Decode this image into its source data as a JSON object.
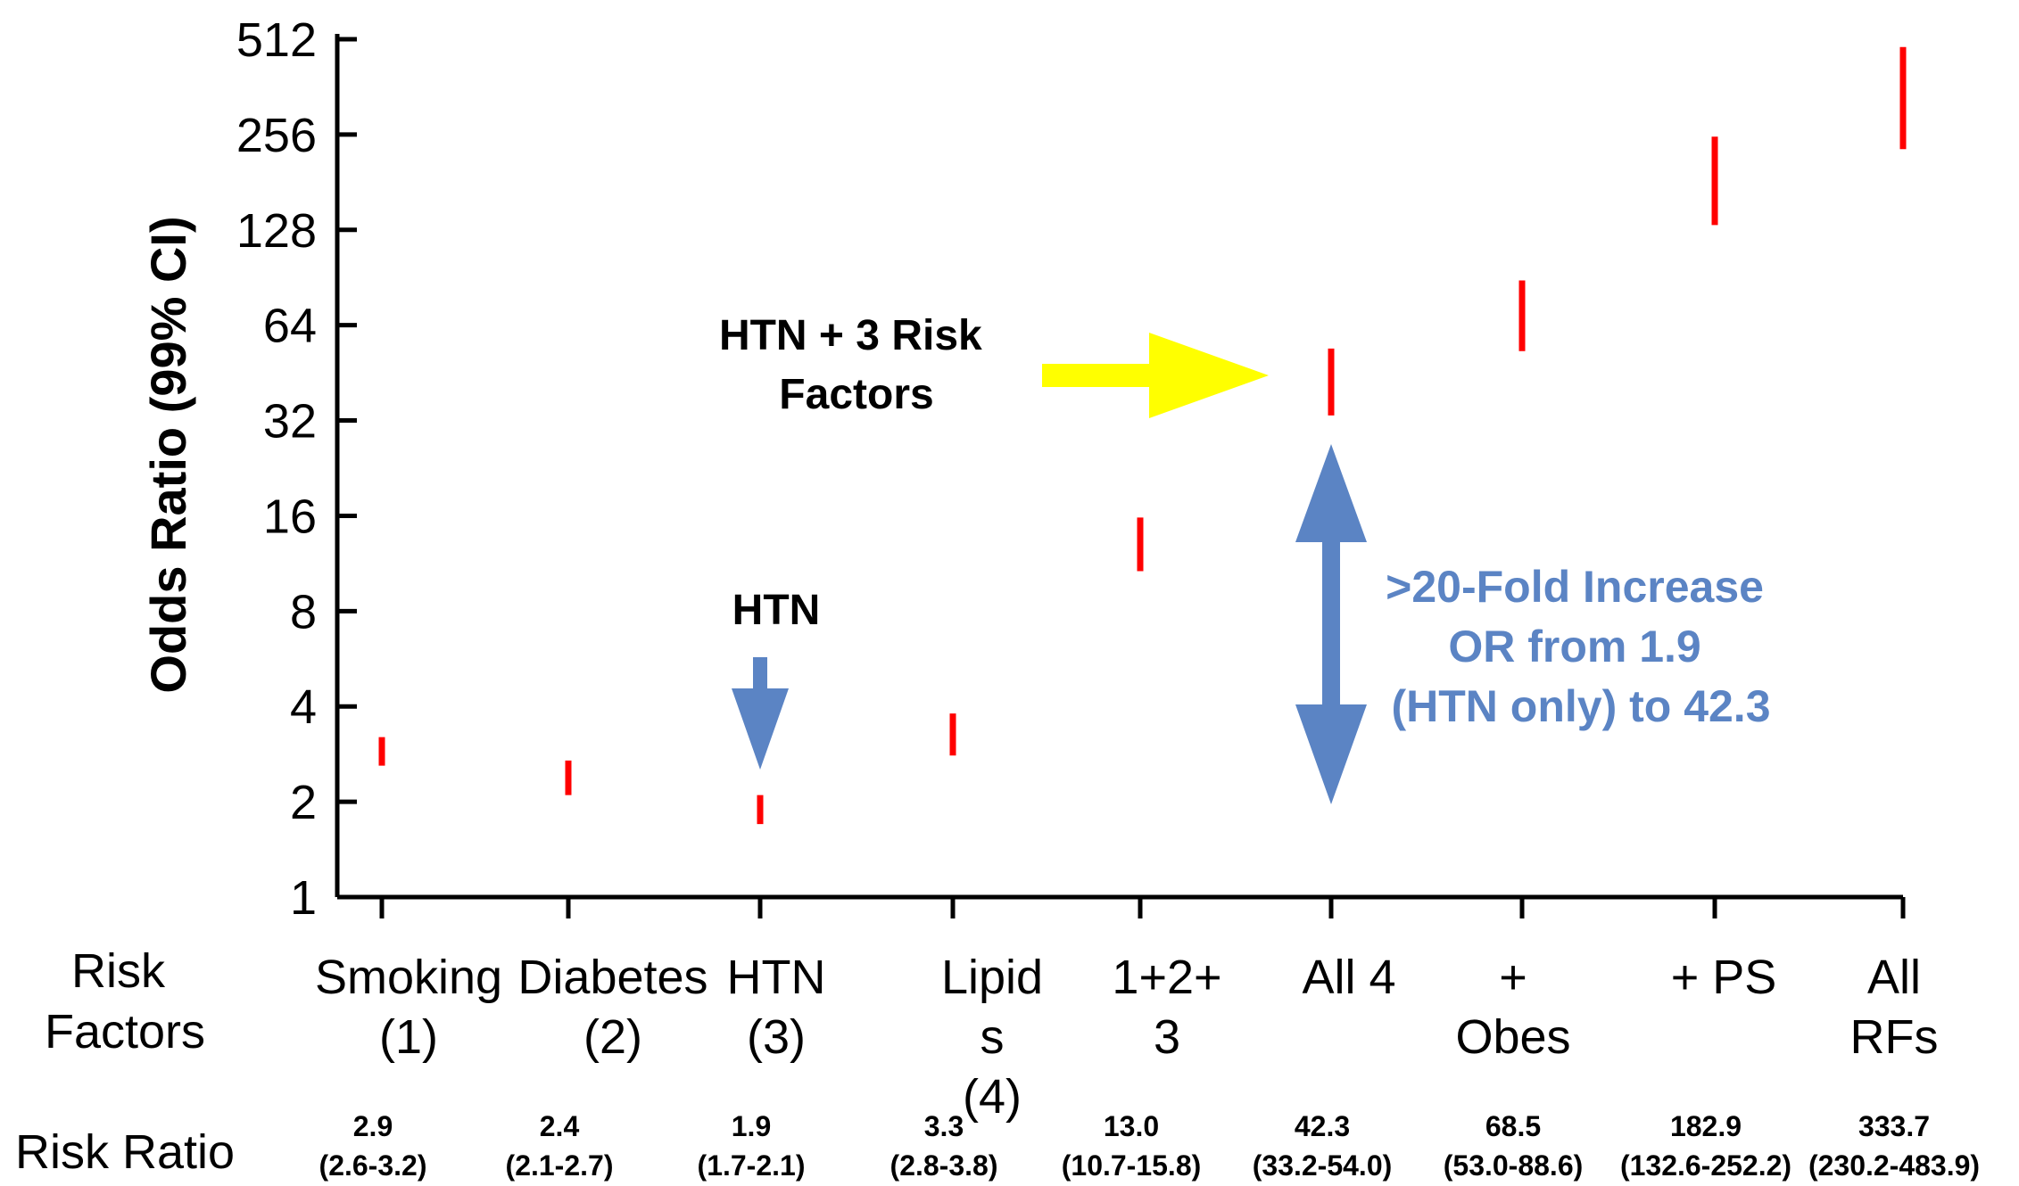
{
  "colors": {
    "ci_bar": "#ff0000",
    "axis": "#000000",
    "blue_arrow": "#5b84c4",
    "yellow_arrow": "#ffff00",
    "blue_text": "#5b84c4"
  },
  "row_labels": {
    "risk_factors": [
      "Risk",
      "Factors"
    ],
    "risk_ratio": "Risk Ratio"
  },
  "annotations": {
    "htn_plus": [
      "HTN + 3 Risk",
      "Factors"
    ],
    "htn": "HTN",
    "fold_increase": [
      ">20-Fold Increase",
      "OR from 1.9",
      "(HTN only) to 42.3"
    ]
  },
  "chart_data": {
    "type": "error-bar",
    "ylabel": "Odds Ratio (99% CI)",
    "yscale": "log2",
    "ylim": [
      1,
      512
    ],
    "yticks": [
      "1",
      "2",
      "4",
      "8",
      "16",
      "32",
      "64",
      "128",
      "256",
      "512"
    ],
    "categories": [
      [
        "Smoking",
        "(1)"
      ],
      [
        "Diabetes",
        "(2)"
      ],
      [
        "HTN",
        "(3)"
      ],
      [
        "Lipid",
        "s",
        "(4)"
      ],
      [
        "1+2+",
        "3"
      ],
      [
        "All 4"
      ],
      [
        "+",
        "Obes"
      ],
      [
        "+ PS"
      ],
      [
        "All",
        "RFs"
      ]
    ],
    "risk_ratio": [
      {
        "value": "2.9",
        "ci": "(2.6-3.2)"
      },
      {
        "value": "2.4",
        "ci": "(2.1-2.7)"
      },
      {
        "value": "1.9",
        "ci": "(1.7-2.1)"
      },
      {
        "value": "3.3",
        "ci": "(2.8-3.8)"
      },
      {
        "value": "13.0",
        "ci": "(10.7-15.8)"
      },
      {
        "value": "42.3",
        "ci": "(33.2-54.0)"
      },
      {
        "value": "68.5",
        "ci": "(53.0-88.6)"
      },
      {
        "value": "182.9",
        "ci": "(132.6-252.2)"
      },
      {
        "value": "333.7",
        "ci": "(230.2-483.9)"
      }
    ],
    "ci_ranges": [
      [
        2.6,
        3.2
      ],
      [
        2.1,
        2.7
      ],
      [
        1.7,
        2.1
      ],
      [
        2.8,
        3.8
      ],
      [
        10.7,
        15.8
      ],
      [
        33.2,
        54.0
      ],
      [
        53.0,
        88.6
      ],
      [
        132.6,
        252.2
      ],
      [
        230.2,
        483.9
      ]
    ]
  }
}
